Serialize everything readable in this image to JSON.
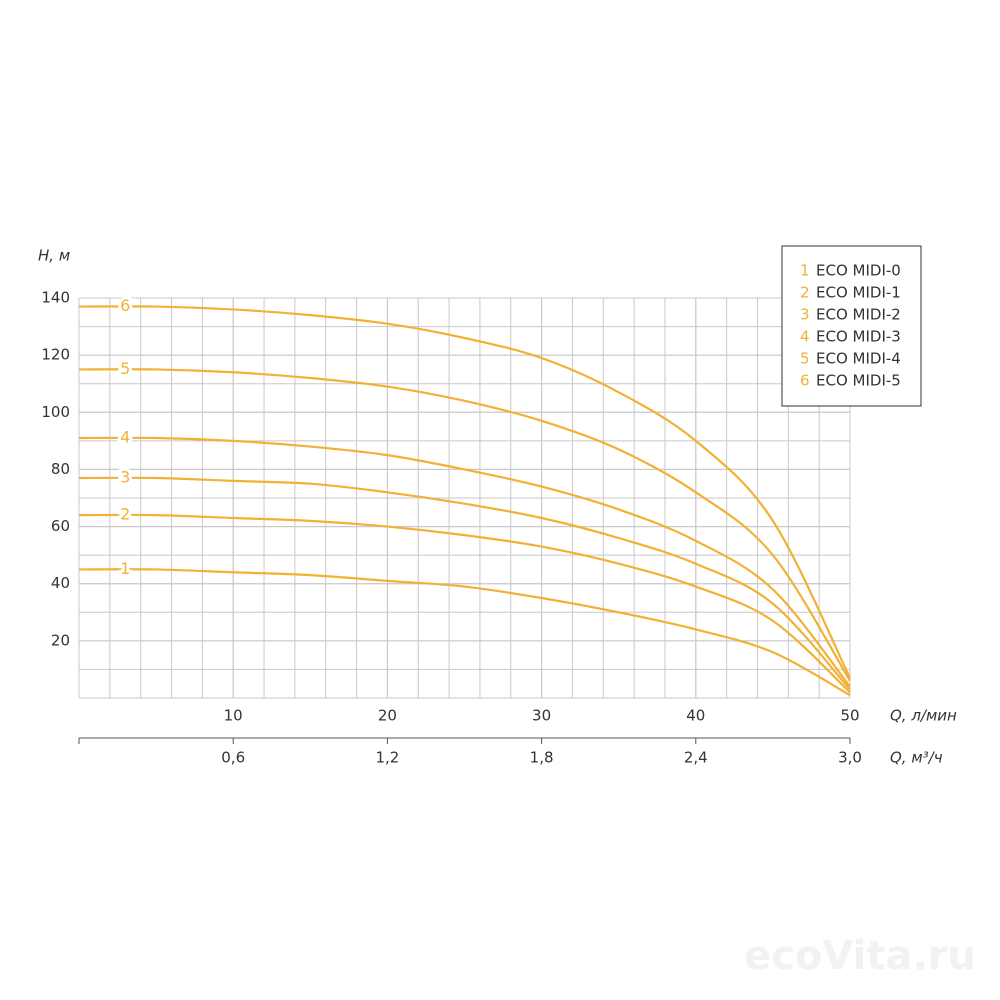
{
  "chart_data": {
    "type": "line",
    "y_label": "H, м",
    "x_label": "Q, л/мин",
    "x2_label": "Q, м³/ч",
    "watermark": "ecoVita.ru",
    "x": [
      0,
      5,
      10,
      15,
      20,
      25,
      30,
      35,
      40,
      45,
      50
    ],
    "xlim": [
      0,
      50
    ],
    "xticks": [
      10,
      20,
      30,
      40,
      50
    ],
    "x2lim": [
      0,
      3.0
    ],
    "x2ticks": [
      {
        "value": 0.6,
        "label": "0,6"
      },
      {
        "value": 1.2,
        "label": "1,2"
      },
      {
        "value": 1.8,
        "label": "1,8"
      },
      {
        "value": 2.4,
        "label": "2,4"
      },
      {
        "value": 3.0,
        "label": "3,0"
      }
    ],
    "ylim": [
      0,
      140
    ],
    "yticks": [
      20,
      40,
      60,
      80,
      100,
      120,
      140
    ],
    "grid": true,
    "series": [
      {
        "label": "1",
        "name": "ECO MIDI-0",
        "color": "#f2b134",
        "values": [
          45,
          45,
          44,
          43,
          41,
          39,
          35,
          30,
          24,
          16,
          1
        ]
      },
      {
        "label": "2",
        "name": "ECO MIDI-1",
        "color": "#f2b134",
        "values": [
          64,
          64,
          63,
          62,
          60,
          57,
          53,
          47,
          39,
          27,
          2
        ]
      },
      {
        "label": "3",
        "name": "ECO MIDI-2",
        "color": "#f2b134",
        "values": [
          77,
          77,
          76,
          75,
          72,
          68,
          63,
          56,
          47,
          33,
          3
        ]
      },
      {
        "label": "4",
        "name": "ECO MIDI-3",
        "color": "#f2b134",
        "values": [
          91,
          91,
          90,
          88,
          85,
          80,
          74,
          66,
          55,
          38,
          4
        ]
      },
      {
        "label": "5",
        "name": "ECO MIDI-4",
        "color": "#f2b134",
        "values": [
          115,
          115,
          114,
          112,
          109,
          104,
          97,
          87,
          72,
          50,
          6
        ]
      },
      {
        "label": "6",
        "name": "ECO MIDI-5",
        "color": "#f2b134",
        "values": [
          137,
          137,
          136,
          134,
          131,
          126,
          119,
          107,
          90,
          62,
          7
        ]
      }
    ]
  }
}
